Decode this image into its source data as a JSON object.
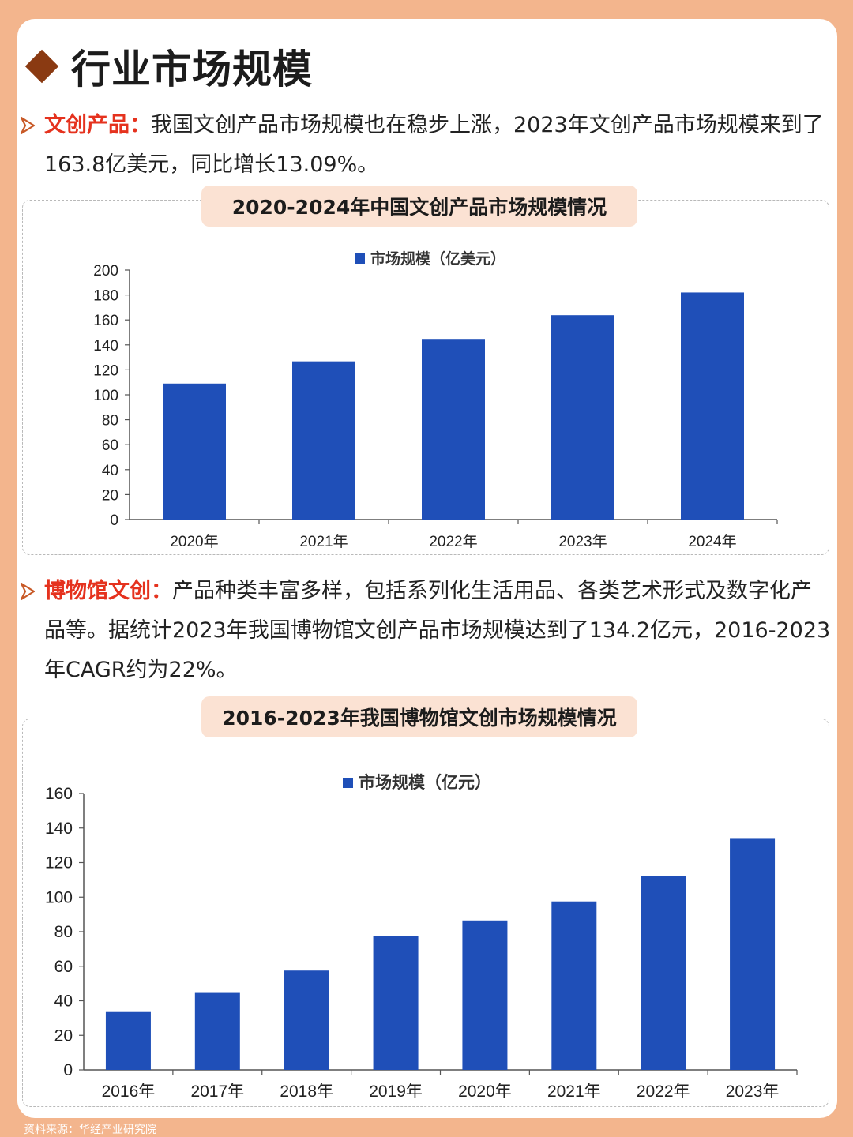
{
  "page_title": "行业市场规模",
  "section1": {
    "keyword": "文创产品：",
    "text": "我国文创产品市场规模也在稳步上涨，2023年文创产品市场规模来到了163.8亿美元，同比增长13.09%。"
  },
  "section2": {
    "keyword": "博物馆文创：",
    "text": "产品种类丰富多样，包括系列化生活用品、各类艺术形式及数字化产品等。据统计2023年我国博物馆文创产品市场规模达到了134.2亿元，2016-2023年CAGR约为22%。"
  },
  "source": "资料来源：华经产业研究院",
  "colors": {
    "bar": "#1f4fb8",
    "accent": "#e5321e",
    "background": "#f3b58d",
    "pill": "#fbe2d3"
  },
  "chart_data": [
    {
      "type": "bar",
      "title": "2020-2024年中国文创产品市场规模情况",
      "categories": [
        "2020年",
        "2021年",
        "2022年",
        "2023年",
        "2024年"
      ],
      "series": [
        {
          "name": "市场规模（亿美元）",
          "values": [
            109,
            126.8,
            144.8,
            163.8,
            182
          ]
        }
      ],
      "ylim": [
        0,
        200
      ],
      "yticks": [
        "0",
        "20",
        "40",
        "60",
        "80",
        "100",
        "120",
        "140",
        "160",
        "180",
        "200"
      ],
      "legend": "top-center",
      "grid": false
    },
    {
      "type": "bar",
      "title": "2016-2023年我国博物馆文创市场规模情况",
      "categories": [
        "2016年",
        "2017年",
        "2018年",
        "2019年",
        "2020年",
        "2021年",
        "2022年",
        "2023年"
      ],
      "series": [
        {
          "name": "市场规模（亿元）",
          "values": [
            33.5,
            45,
            57.5,
            77.5,
            86.5,
            97.5,
            112,
            134.2
          ]
        }
      ],
      "ylim": [
        0,
        160
      ],
      "yticks": [
        "0",
        "20",
        "40",
        "60",
        "80",
        "100",
        "120",
        "140",
        "160"
      ],
      "legend": "top-center",
      "grid": false
    }
  ]
}
